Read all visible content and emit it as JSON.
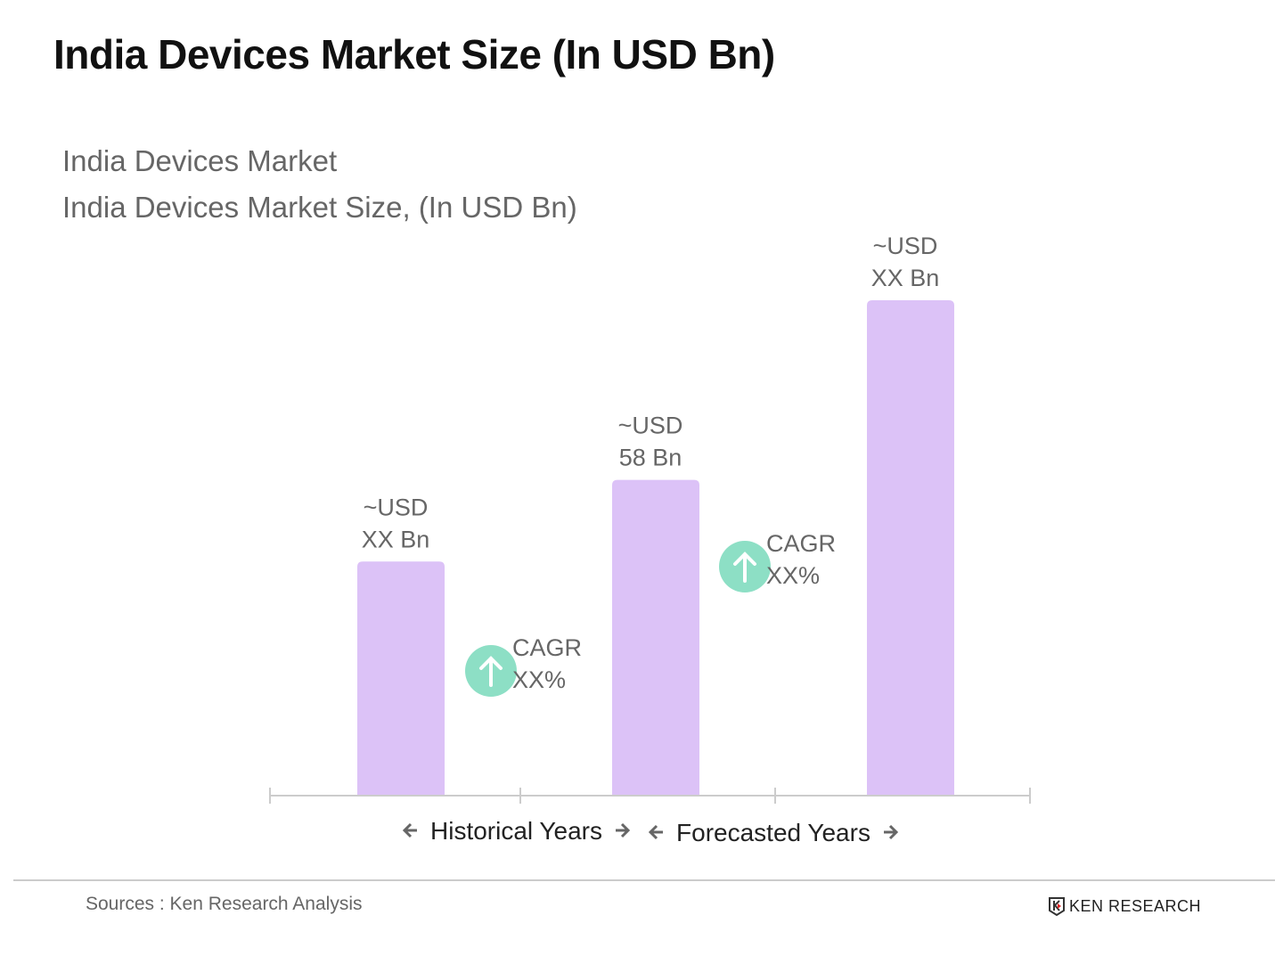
{
  "header": {
    "title": "India Devices Market Size (In USD Bn)"
  },
  "chart_data": {
    "type": "bar",
    "title": "India Devices Market",
    "subtitle": "India Devices Market Size, (In USD Bn)",
    "categories": [
      "",
      "",
      ""
    ],
    "values": [
      43,
      58,
      91
    ],
    "data_labels": [
      [
        "~USD",
        "XX Bn"
      ],
      [
        "~USD",
        "58 Bn"
      ],
      [
        "~USD",
        "XX Bn"
      ]
    ],
    "bar_color": "#dcc2f7",
    "annotations": [
      {
        "between": [
          0,
          1
        ],
        "lines": [
          "CAGR",
          "XX%"
        ],
        "icon": "arrow-up-circle-icon",
        "color": "#8ddfc5"
      },
      {
        "between": [
          1,
          2
        ],
        "lines": [
          "CAGR",
          "XX%"
        ],
        "icon": "arrow-up-circle-icon",
        "color": "#8ddfc5"
      }
    ],
    "period_labels": [
      "Historical Years",
      "Forecasted Years"
    ],
    "grid": false,
    "ylim": [
      0,
      100
    ]
  },
  "footer": {
    "source": "Sources : Ken Research Analysis",
    "logo_text": "KEN RESEARCH"
  }
}
